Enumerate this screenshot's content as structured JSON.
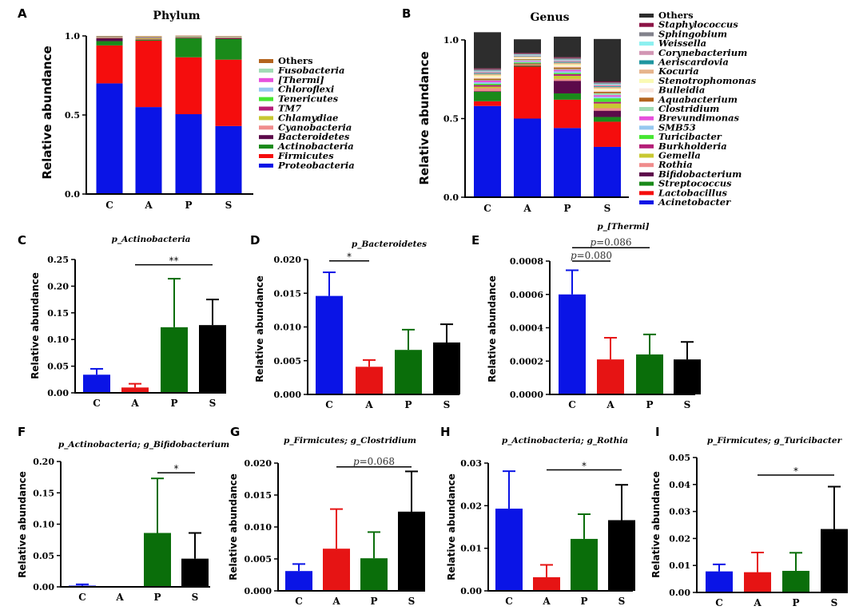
{
  "panel_letters": [
    "A",
    "B",
    "C",
    "D",
    "E",
    "F",
    "G",
    "H",
    "I"
  ],
  "chart_data": [
    {
      "panel": "A",
      "type": "stacked_bar",
      "title": "Phylum",
      "ylabel": "Relative abundance",
      "categories": [
        "C",
        "A",
        "P",
        "S"
      ],
      "yticks": [
        "0.0",
        "0.5",
        "1.0"
      ],
      "ylim": [
        0,
        1
      ],
      "series": [
        {
          "name": "Proteobacteria",
          "italic": true,
          "color": "#0a14e6",
          "values": [
            0.7,
            0.55,
            0.505,
            0.43
          ]
        },
        {
          "name": "Firmicutes",
          "italic": true,
          "color": "#f50d0d",
          "values": [
            0.24,
            0.42,
            0.36,
            0.42
          ]
        },
        {
          "name": "Actinobacteria",
          "italic": true,
          "color": "#1a8a1a",
          "values": [
            0.027,
            0.005,
            0.12,
            0.13
          ]
        },
        {
          "name": "Bacteroidetes",
          "italic": true,
          "color": "#5c0a4a",
          "values": [
            0.018,
            0.003,
            0.004,
            0.006
          ]
        },
        {
          "name": "Cyanobacteria",
          "italic": true,
          "color": "#f08c8c",
          "values": [
            0.003,
            0.002,
            0.002,
            0.002
          ]
        },
        {
          "name": "Chlamydiae",
          "italic": true,
          "color": "#c8c832",
          "values": [
            0.002,
            0.006,
            0.002,
            0.002
          ]
        },
        {
          "name": "TM7",
          "italic": true,
          "color": "#b41e78",
          "values": [
            0.002,
            0.002,
            0.002,
            0.002
          ]
        },
        {
          "name": "Tenericutes",
          "italic": true,
          "color": "#46e632",
          "values": [
            0.002,
            0.002,
            0.001,
            0.001
          ]
        },
        {
          "name": "Chloroflexi",
          "italic": true,
          "color": "#96c8f0",
          "values": [
            0.001,
            0.001,
            0.001,
            0.001
          ]
        },
        {
          "name": "[Thermi]",
          "italic": true,
          "color": "#e650dc",
          "values": [
            0.001,
            0.001,
            0.001,
            0.001
          ]
        },
        {
          "name": "Fusobacteria",
          "italic": true,
          "color": "#a0dcb4",
          "values": [
            0.001,
            0.001,
            0.001,
            0.001
          ]
        },
        {
          "name": "Others",
          "italic": false,
          "color": "#b4641e",
          "values": [
            0.003,
            0.005,
            0.003,
            0.002
          ]
        }
      ]
    },
    {
      "panel": "B",
      "type": "stacked_bar",
      "title": "Genus",
      "ylabel": "Relative abundance",
      "categories": [
        "C",
        "A",
        "P",
        "S"
      ],
      "yticks": [
        "0.0",
        "0.5",
        "1.0"
      ],
      "ylim": [
        0,
        1
      ],
      "series": [
        {
          "name": "Acinetobacter",
          "italic": true,
          "color": "#0a14e6",
          "values": [
            0.58,
            0.5,
            0.44,
            0.32
          ]
        },
        {
          "name": "Lactobacillus",
          "italic": true,
          "color": "#f50d0d",
          "values": [
            0.03,
            0.33,
            0.18,
            0.16
          ]
        },
        {
          "name": "Streptococcus",
          "italic": true,
          "color": "#1a8a1a",
          "values": [
            0.06,
            0.005,
            0.04,
            0.03
          ]
        },
        {
          "name": "Bifidobacterium",
          "italic": true,
          "color": "#5c0a4a",
          "values": [
            0.004,
            0.002,
            0.08,
            0.04
          ]
        },
        {
          "name": "Rothia",
          "italic": true,
          "color": "#f08c8c",
          "values": [
            0.019,
            0.003,
            0.012,
            0.016
          ]
        },
        {
          "name": "Gemella",
          "italic": true,
          "color": "#c8c832",
          "values": [
            0.01,
            0.005,
            0.02,
            0.03
          ]
        },
        {
          "name": "Burkholderia",
          "italic": true,
          "color": "#b41e78",
          "values": [
            0.01,
            0.005,
            0.01,
            0.01
          ]
        },
        {
          "name": "Turicibacter",
          "italic": true,
          "color": "#46e632",
          "values": [
            0.008,
            0.007,
            0.008,
            0.023
          ]
        },
        {
          "name": "SMB53",
          "italic": true,
          "color": "#96c8f0",
          "values": [
            0.01,
            0.005,
            0.01,
            0.01
          ]
        },
        {
          "name": "Brevundimonas",
          "italic": true,
          "color": "#e650dc",
          "values": [
            0.01,
            0.005,
            0.01,
            0.01
          ]
        },
        {
          "name": "Clostridium",
          "italic": true,
          "color": "#a0dcb4",
          "values": [
            0.003,
            0.007,
            0.005,
            0.012
          ]
        },
        {
          "name": "Aquabacterium",
          "italic": true,
          "color": "#b4641e",
          "values": [
            0.01,
            0.005,
            0.01,
            0.01
          ]
        },
        {
          "name": "Bulleidia",
          "italic": true,
          "color": "#fae6dc",
          "values": [
            0.01,
            0.005,
            0.01,
            0.01
          ]
        },
        {
          "name": "Stenotrophomonas",
          "italic": true,
          "color": "#fafab4",
          "values": [
            0.01,
            0.005,
            0.01,
            0.01
          ]
        },
        {
          "name": "Kocuria",
          "italic": true,
          "color": "#e6b48c",
          "values": [
            0.01,
            0.005,
            0.01,
            0.01
          ]
        },
        {
          "name": "Aeriscardovia",
          "italic": true,
          "color": "#1e96a0",
          "values": [
            0.005,
            0.003,
            0.005,
            0.005
          ]
        },
        {
          "name": "Corynebacterium",
          "italic": true,
          "color": "#d296b4",
          "values": [
            0.01,
            0.005,
            0.01,
            0.01
          ]
        },
        {
          "name": "Weissella",
          "italic": true,
          "color": "#8cf0f0",
          "values": [
            0.005,
            0.005,
            0.005,
            0.005
          ]
        },
        {
          "name": "Sphingobium",
          "italic": true,
          "color": "#82828c",
          "values": [
            0.01,
            0.005,
            0.01,
            0.01
          ]
        },
        {
          "name": "Staphylococcus",
          "italic": true,
          "color": "#8c1446",
          "values": [
            0.005,
            0.005,
            0.005,
            0.005
          ]
        },
        {
          "name": "Others",
          "italic": false,
          "color": "#2d2d2d",
          "values": [
            0.23,
            0.087,
            0.131,
            0.27
          ]
        }
      ]
    },
    {
      "panel": "C",
      "type": "bar",
      "title": "p_Actinobacteria",
      "ylabel": "Relative abundance",
      "categories": [
        "C",
        "A",
        "P",
        "S"
      ],
      "values": [
        0.034,
        0.01,
        0.123,
        0.127
      ],
      "errors": [
        0.011,
        0.007,
        0.091,
        0.048
      ],
      "colors": [
        "#0a14e6",
        "#e61414",
        "#0a6e0a",
        "#000000"
      ],
      "ylim": [
        0,
        0.25
      ],
      "yticks": [
        "0.00",
        "0.05",
        "0.10",
        "0.15",
        "0.20",
        "0.25"
      ],
      "annotations": [
        {
          "label": "**",
          "from": "A",
          "to": "S",
          "y": 0.24
        }
      ]
    },
    {
      "panel": "D",
      "type": "bar",
      "title": "p_Bacteroidetes",
      "ylabel": "Relative abundance",
      "categories": [
        "C",
        "A",
        "P",
        "S"
      ],
      "values": [
        0.0146,
        0.0041,
        0.0066,
        0.0077
      ],
      "errors": [
        0.0035,
        0.001,
        0.003,
        0.0027
      ],
      "colors": [
        "#0a14e6",
        "#e61414",
        "#0a6e0a",
        "#000000"
      ],
      "ylim": [
        0,
        0.02
      ],
      "yticks": [
        "0.000",
        "0.005",
        "0.010",
        "0.015",
        "0.020"
      ],
      "annotations": [
        {
          "label": "*",
          "from": "C",
          "to": "A",
          "y": 0.0198
        }
      ]
    },
    {
      "panel": "E",
      "type": "bar",
      "title": "p_[Thermi]",
      "ylabel": "Relative abundance",
      "categories": [
        "C",
        "A",
        "P",
        "S"
      ],
      "values": [
        0.0006,
        0.00021,
        0.00024,
        0.00021
      ],
      "errors": [
        0.000145,
        0.00013,
        0.00012,
        0.000105
      ],
      "colors": [
        "#0a14e6",
        "#e61414",
        "#0a6e0a",
        "#000000"
      ],
      "ylim": [
        0,
        0.0008
      ],
      "yticks": [
        "0.0000",
        "0.0002",
        "0.0004",
        "0.0006",
        "0.0008"
      ],
      "annotations": [
        {
          "p_prefix": "p",
          "label": "=0.080",
          "from": "C",
          "to": "A",
          "y": 0.0008
        },
        {
          "p_prefix": "p",
          "label": "=0.086",
          "from": "C",
          "to": "P",
          "y": 0.00088
        }
      ]
    },
    {
      "panel": "F",
      "type": "bar",
      "title": "p_Actinobacteria; g_Bifidobacterium",
      "ylabel": "Relative abundance",
      "categories": [
        "C",
        "A",
        "P",
        "S"
      ],
      "values": [
        0.002,
        0,
        0.086,
        0.045
      ],
      "errors": [
        0.002,
        0,
        0.087,
        0.041
      ],
      "colors": [
        "#0a14e6",
        "#e61414",
        "#0a6e0a",
        "#000000"
      ],
      "ylim": [
        0,
        0.2
      ],
      "yticks": [
        "0.00",
        "0.05",
        "0.10",
        "0.15",
        "0.20"
      ],
      "annotations": [
        {
          "label": "*",
          "from": "P",
          "to": "S",
          "y": 0.182
        }
      ]
    },
    {
      "panel": "G",
      "type": "bar",
      "title": "p_Firmicutes; g_Clostridium",
      "ylabel": "Relative abundance",
      "categories": [
        "C",
        "A",
        "P",
        "S"
      ],
      "values": [
        0.0031,
        0.0066,
        0.0051,
        0.0124
      ],
      "errors": [
        0.0011,
        0.0062,
        0.0041,
        0.0063
      ],
      "colors": [
        "#0a14e6",
        "#e61414",
        "#0a6e0a",
        "#000000"
      ],
      "ylim": [
        0,
        0.02
      ],
      "yticks": [
        "0.000",
        "0.005",
        "0.010",
        "0.015",
        "0.020"
      ],
      "annotations": [
        {
          "p_prefix": "p",
          "label": "=0.068",
          "from": "A",
          "to": "S",
          "y": 0.0194
        }
      ]
    },
    {
      "panel": "H",
      "type": "bar",
      "title": "p_Actinobacteria; g_Rothia",
      "ylabel": "Relative abundance",
      "categories": [
        "C",
        "A",
        "P",
        "S"
      ],
      "values": [
        0.0193,
        0.0032,
        0.0122,
        0.0166
      ],
      "errors": [
        0.0088,
        0.0029,
        0.0058,
        0.0083
      ],
      "colors": [
        "#0a14e6",
        "#e61414",
        "#0a6e0a",
        "#000000"
      ],
      "ylim": [
        0,
        0.03
      ],
      "yticks": [
        "0.00",
        "0.01",
        "0.02",
        "0.03"
      ],
      "annotations": [
        {
          "label": "*",
          "from": "A",
          "to": "S",
          "y": 0.0284
        }
      ]
    },
    {
      "panel": "I",
      "type": "bar",
      "title": "p_Firmicutes; g_Turicibacter",
      "ylabel": "Relative abundance",
      "categories": [
        "C",
        "A",
        "P",
        "S"
      ],
      "values": [
        0.0078,
        0.0075,
        0.008,
        0.0235
      ],
      "errors": [
        0.0026,
        0.0073,
        0.0067,
        0.0157
      ],
      "colors": [
        "#0a14e6",
        "#e61414",
        "#0a6e0a",
        "#000000"
      ],
      "ylim": [
        0,
        0.05
      ],
      "yticks": [
        "0.00",
        "0.01",
        "0.02",
        "0.03",
        "0.04",
        "0.05"
      ],
      "annotations": [
        {
          "label": "*",
          "from": "A",
          "to": "S",
          "y": 0.0435
        }
      ]
    }
  ]
}
